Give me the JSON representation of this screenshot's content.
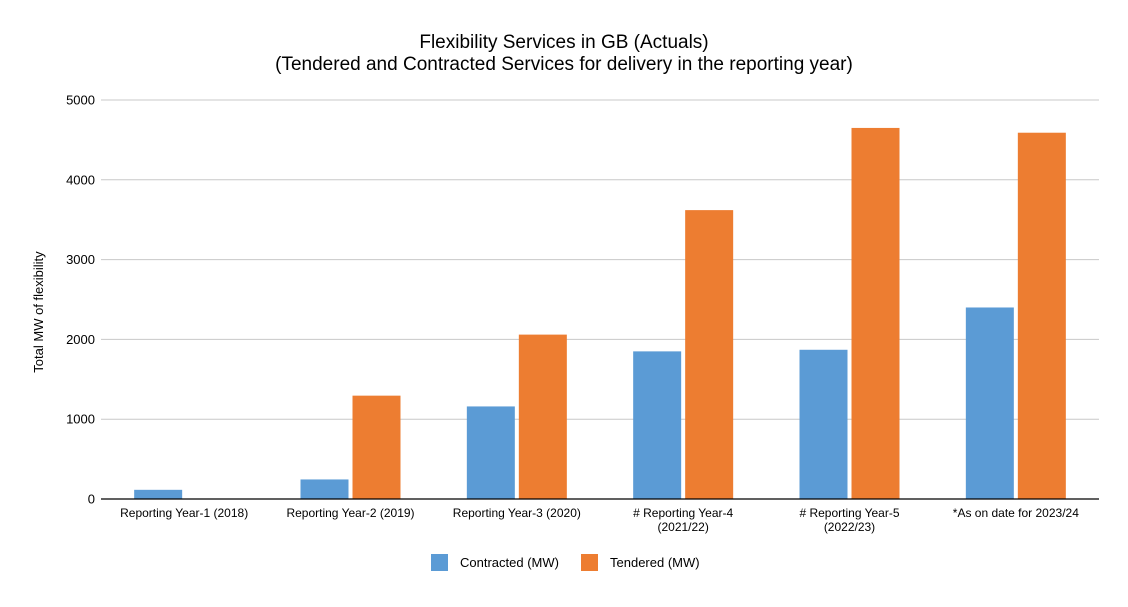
{
  "chart_data": {
    "type": "bar",
    "title": "Flexibility Services in GB (Actuals)",
    "subtitle": "(Tendered and Contracted Services for delivery in the reporting year)",
    "xlabel": "",
    "ylabel": "Total MW of flexibility",
    "ylim": [
      0,
      5000
    ],
    "yticks": [
      0,
      1000,
      2000,
      3000,
      4000,
      5000
    ],
    "grid": true,
    "legend_position": "bottom",
    "categories": [
      [
        "Reporting Year-1 (2018)"
      ],
      [
        "Reporting Year-2 (2019)"
      ],
      [
        "Reporting Year-3 (2020)"
      ],
      [
        "# Reporting Year-4",
        "(2021/22)"
      ],
      [
        "# Reporting Year-5",
        "(2022/23)"
      ],
      [
        "*As on date for 2023/24"
      ]
    ],
    "series": [
      {
        "name": "Contracted (MW)",
        "color": "#5b9bd5",
        "values": [
          115,
          245,
          1160,
          1850,
          1870,
          2400
        ]
      },
      {
        "name": "Tendered (MW)",
        "color": "#ed7d31",
        "values": [
          0,
          1295,
          2060,
          3620,
          4650,
          4590
        ]
      }
    ]
  }
}
